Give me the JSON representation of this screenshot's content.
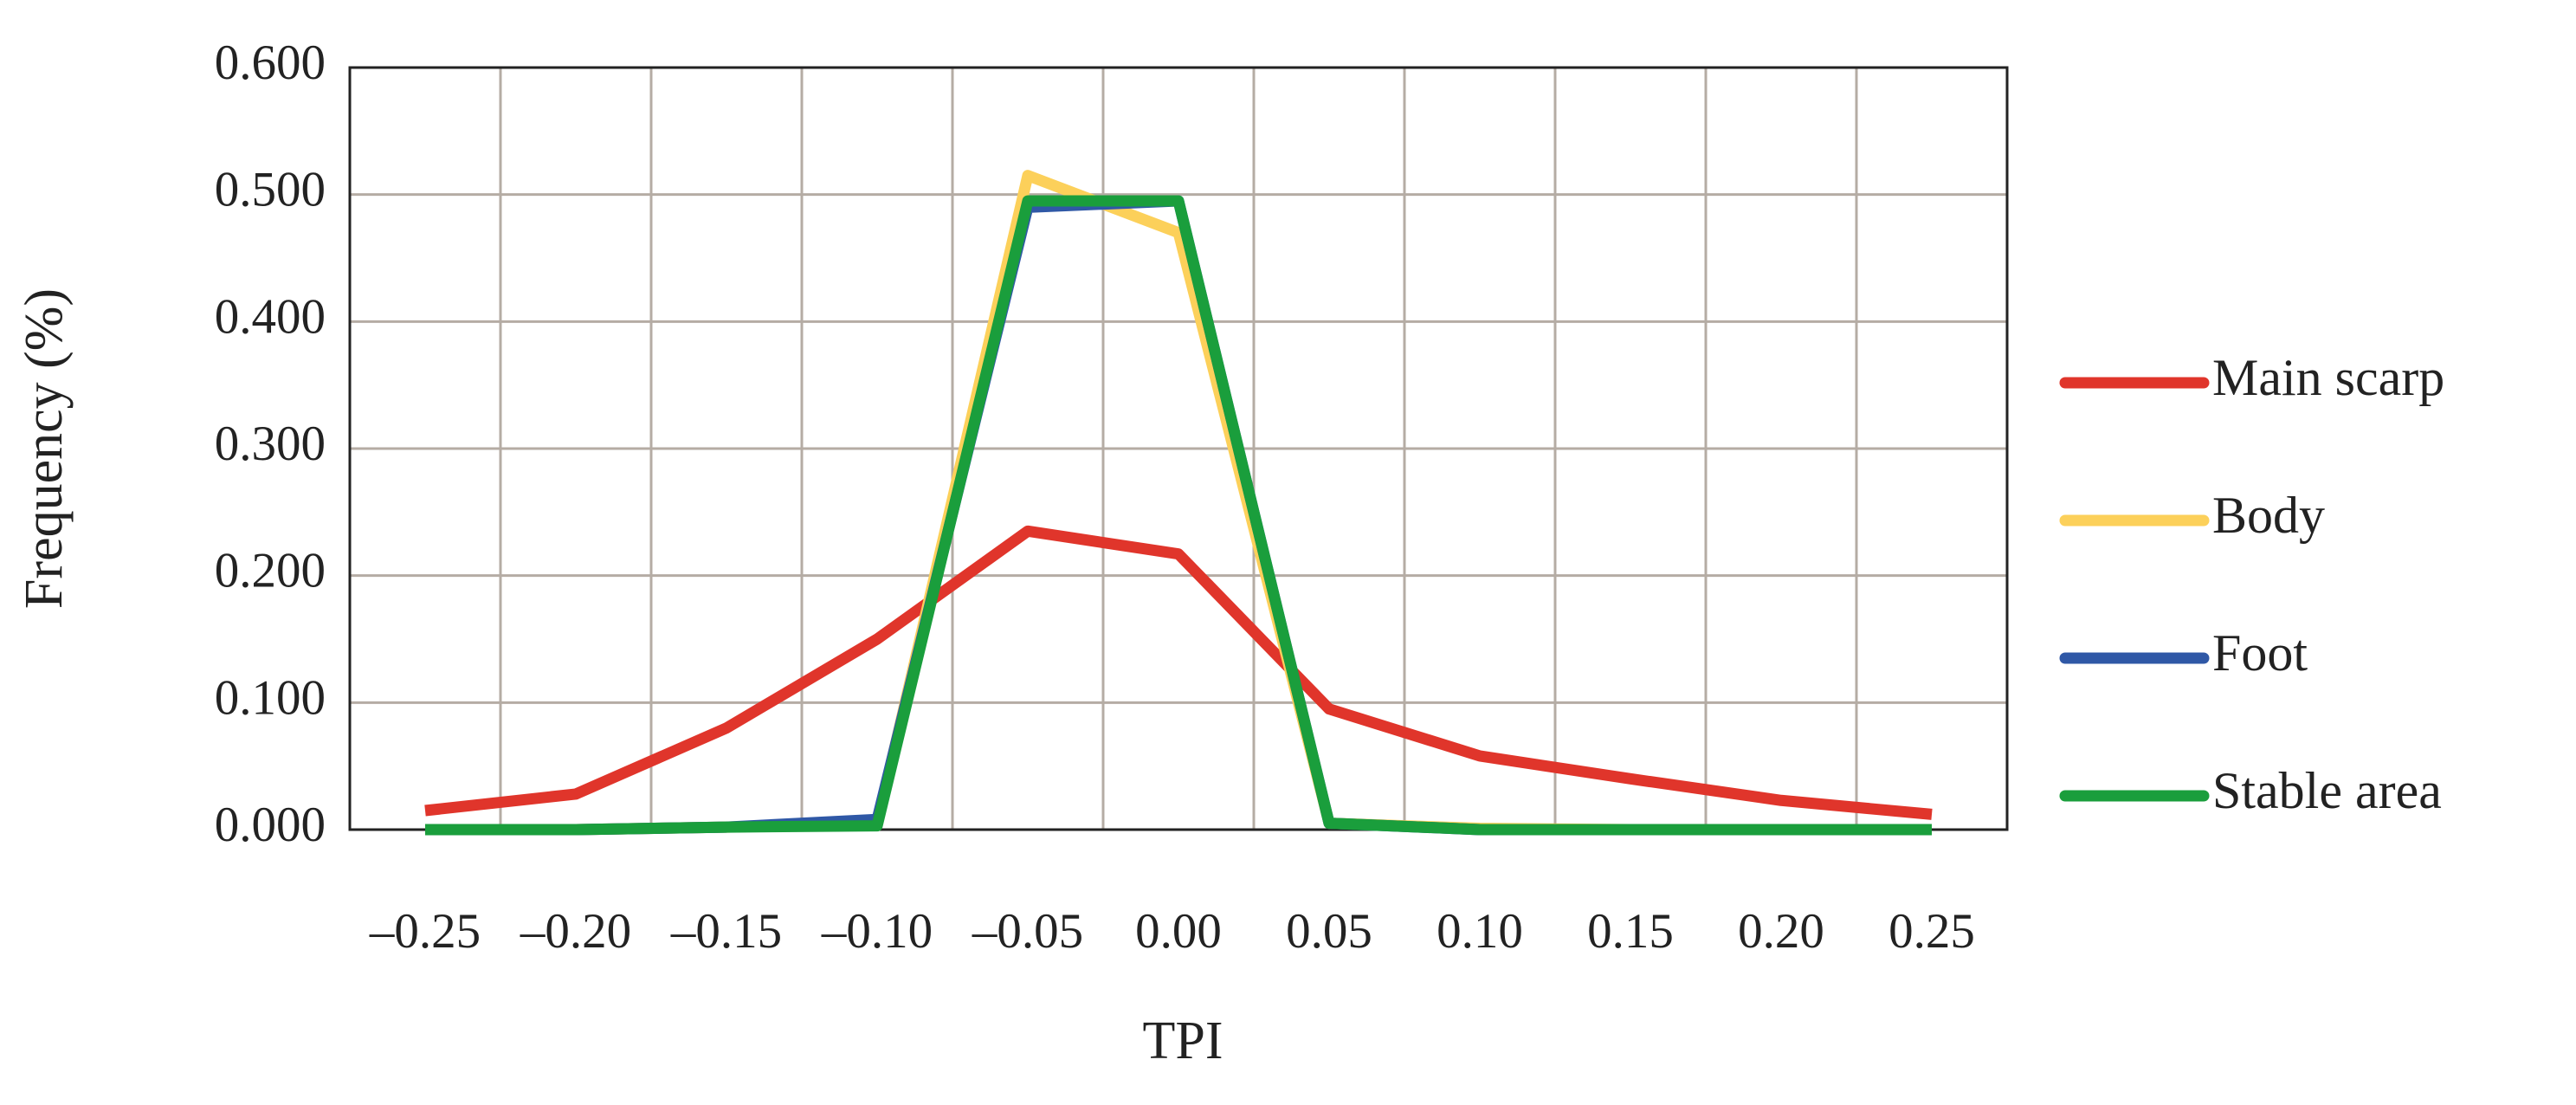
{
  "chart_data": {
    "type": "line",
    "x_label": "TPI",
    "y_label": "Frequency (%)",
    "categories": [
      "–0.25",
      "–0.20",
      "–0.15",
      "–0.10",
      "–0.05",
      "0.00",
      "0.05",
      "0.10",
      "0.15",
      "0.20",
      "0.25"
    ],
    "series": [
      {
        "name": "Main scarp",
        "color": "#e0352b",
        "values": [
          0.015,
          0.028,
          0.08,
          0.15,
          0.235,
          0.217,
          0.095,
          0.058,
          0.04,
          0.023,
          0.012
        ]
      },
      {
        "name": "Body",
        "color": "#fcd05a",
        "values": [
          0,
          0,
          0.002,
          0.005,
          0.515,
          0.47,
          0.005,
          0.001,
          0,
          0,
          0
        ]
      },
      {
        "name": "Foot",
        "color": "#2f58a6",
        "values": [
          0,
          0,
          0.002,
          0.008,
          0.49,
          0.495,
          0.005,
          0,
          0,
          0,
          0
        ]
      },
      {
        "name": "Stable area",
        "color": "#1a9e3c",
        "values": [
          0,
          0,
          0.002,
          0.003,
          0.495,
          0.495,
          0.005,
          0,
          0,
          0,
          0
        ]
      }
    ],
    "ylim": [
      0,
      0.6
    ],
    "yticks": [
      {
        "value": 0,
        "label": "0.000"
      },
      {
        "value": 0.1,
        "label": "0.100"
      },
      {
        "value": 0.2,
        "label": "0.200"
      },
      {
        "value": 0.3,
        "label": "0.300"
      },
      {
        "value": 0.4,
        "label": "0.400"
      },
      {
        "value": 0.5,
        "label": "0.500"
      },
      {
        "value": 0.6,
        "label": "0.600"
      }
    ],
    "grid": true,
    "legend": "right"
  }
}
